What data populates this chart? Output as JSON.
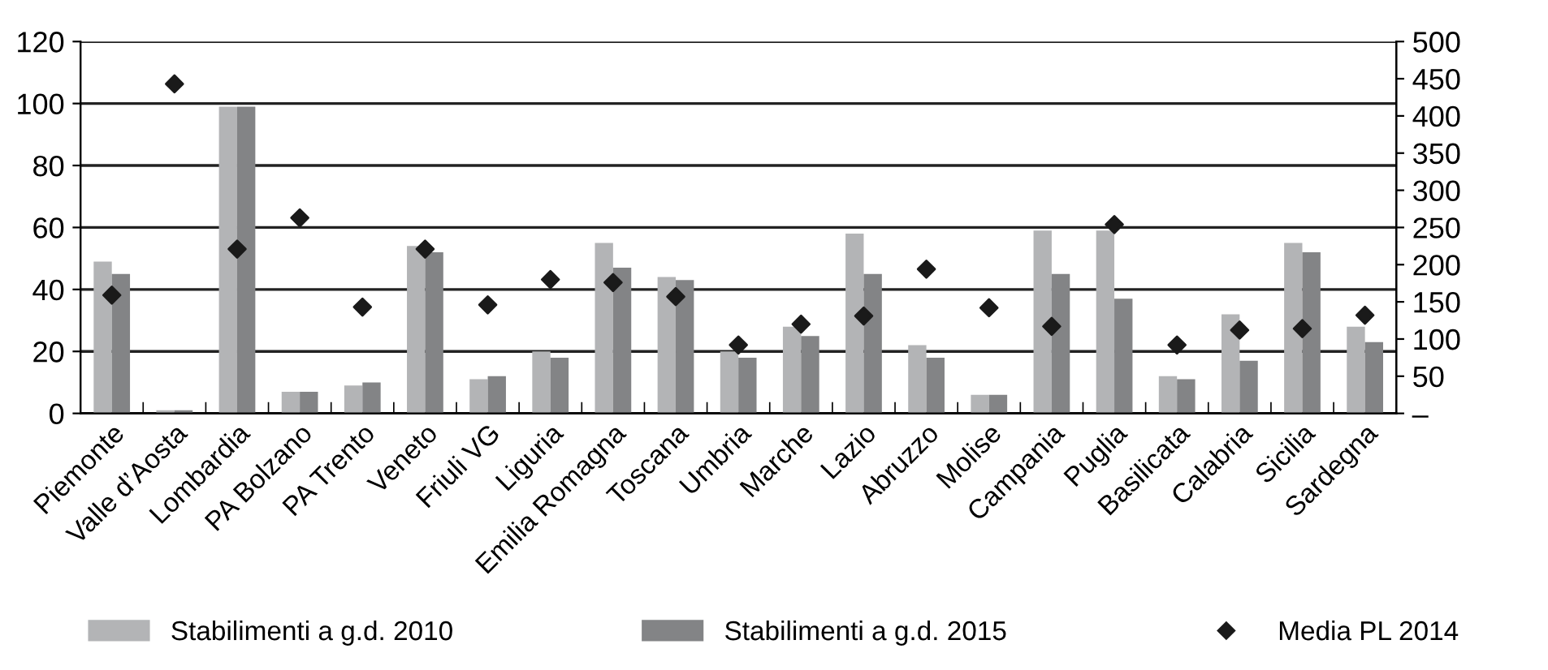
{
  "chart_data": {
    "type": "bar",
    "categories": [
      "Piemonte",
      "Valle d’Aosta",
      "Lombardia",
      "PA Bolzano",
      "PA Trento",
      "Veneto",
      "Friuli VG",
      "Liguria",
      "Emilia Romagna",
      "Toscana",
      "Umbria",
      "Marche",
      "Lazio",
      "Abruzzo",
      "Molise",
      "Campania",
      "Puglia",
      "Basilicata",
      "Calabria",
      "Sicilia",
      "Sardegna"
    ],
    "series": [
      {
        "name": "Stabilimenti a g.d. 2010",
        "color": "#b3b4b6",
        "values": [
          49,
          1,
          99,
          7,
          9,
          54,
          11,
          20,
          55,
          44,
          20,
          28,
          58,
          22,
          6,
          59,
          59,
          12,
          32,
          55,
          28
        ]
      },
      {
        "name": "Stabilimenti a g.d. 2015",
        "color": "#838486",
        "values": [
          45,
          1,
          99,
          7,
          10,
          52,
          12,
          18,
          47,
          43,
          18,
          25,
          45,
          18,
          6,
          45,
          37,
          11,
          17,
          52,
          23
        ]
      },
      {
        "name": "Media PL 2014",
        "type": "scatter",
        "axis": "y2",
        "color": "#1a1a1a",
        "marker": "diamond",
        "values": [
          159,
          443,
          221,
          263,
          143,
          221,
          146,
          180,
          176,
          157,
          92,
          120,
          131,
          194,
          142,
          117,
          254,
          92,
          112,
          114,
          132
        ]
      }
    ],
    "ylim": [
      0,
      120
    ],
    "yticks": [
      0,
      20,
      40,
      60,
      80,
      100,
      120
    ],
    "y2lim": [
      0,
      500
    ],
    "y2ticks": [
      {
        "value": 0,
        "label": "–"
      },
      50,
      100,
      150,
      200,
      250,
      300,
      350,
      400,
      450,
      500
    ],
    "grid": "y",
    "legend": "bottom"
  }
}
